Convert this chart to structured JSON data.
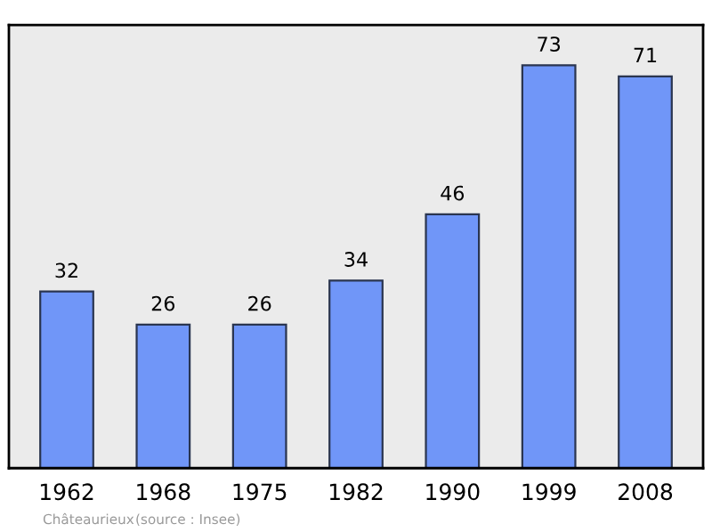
{
  "chart_data": {
    "type": "bar",
    "categories": [
      "1962",
      "1968",
      "1975",
      "1982",
      "1990",
      "1999",
      "2008"
    ],
    "values": [
      32,
      26,
      26,
      34,
      46,
      73,
      71
    ],
    "color": "#7096f8",
    "data_labels": true,
    "grid": false,
    "annotations": [
      "Châteaurieux",
      "(source : Insee)"
    ]
  }
}
